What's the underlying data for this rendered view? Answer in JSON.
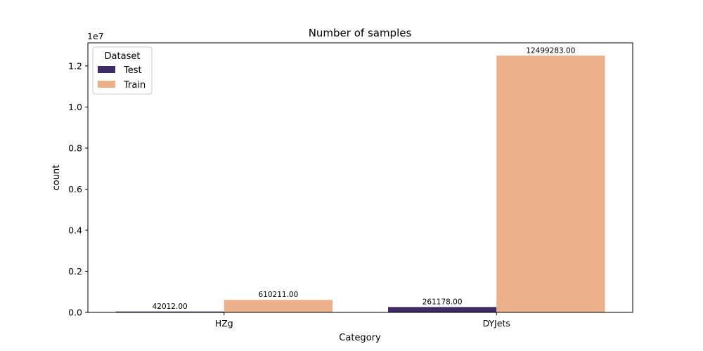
{
  "chart_data": {
    "type": "bar",
    "title": "Number of samples",
    "xlabel": "Category",
    "ylabel": "count",
    "y_offset_label": "1e7",
    "categories": [
      "HZg",
      "DYJets"
    ],
    "series": [
      {
        "name": "Test",
        "values": [
          42012,
          261178
        ],
        "color": "#3e2a64"
      },
      {
        "name": "Train",
        "values": [
          610211,
          12499283
        ],
        "color": "#eab18a"
      }
    ],
    "data_labels": {
      "Test": [
        "42012.00",
        "261178.00"
      ],
      "Train": [
        "610211.00",
        "12499283.00"
      ]
    },
    "ylim": [
      0,
      13124247
    ],
    "yticks": [
      0,
      2000000,
      4000000,
      6000000,
      8000000,
      10000000,
      12000000
    ],
    "ytick_labels": [
      "0.0",
      "0.2",
      "0.4",
      "0.6",
      "0.8",
      "1.0",
      "1.2"
    ],
    "legend": {
      "title": "Dataset",
      "placement": "top-left"
    },
    "grid": false
  }
}
